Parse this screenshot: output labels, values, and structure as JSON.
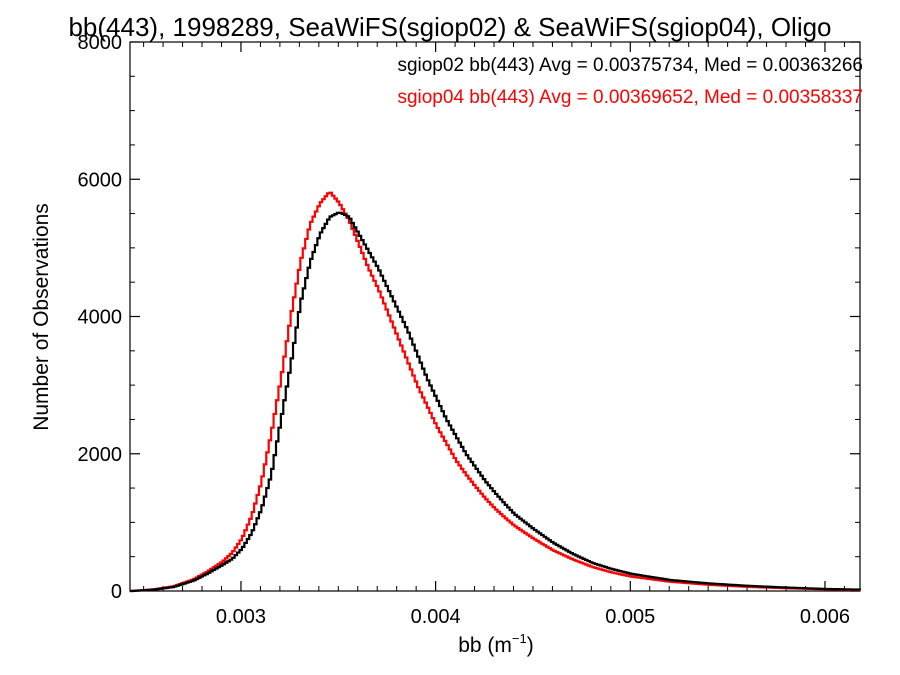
{
  "chart_data": {
    "type": "line",
    "step": true,
    "title": "bb(443), 1998289, SeaWiFS(sgiop02) & SeaWiFS(sgiop04), Oligo",
    "xlabel_main": "bb (m",
    "xlabel_sup": "−1",
    "xlabel_end": ")",
    "ylabel": "Number of Observations",
    "xlim": [
      0.00243,
      0.00618
    ],
    "ylim": [
      0,
      8000
    ],
    "xticks": [
      0.003,
      0.004,
      0.005,
      0.006
    ],
    "xtick_labels": [
      "0.003",
      "0.004",
      "0.005",
      "0.006"
    ],
    "yticks": [
      0,
      2000,
      4000,
      6000,
      8000
    ],
    "ytick_labels": [
      "0",
      "2000",
      "4000",
      "6000",
      "8000"
    ],
    "grid": false,
    "legend_position": "top-right",
    "series": [
      {
        "name": "sgiop02 bb(443) Avg = 0.00375734, Med = 0.00363266",
        "color": "#000000",
        "points": [
          [
            0.00243,
            0
          ],
          [
            0.00255,
            20
          ],
          [
            0.00265,
            60
          ],
          [
            0.00275,
            150
          ],
          [
            0.00282,
            250
          ],
          [
            0.0029,
            380
          ],
          [
            0.00295,
            470
          ],
          [
            0.003,
            620
          ],
          [
            0.00305,
            850
          ],
          [
            0.0031,
            1200
          ],
          [
            0.00315,
            1700
          ],
          [
            0.0032,
            2500
          ],
          [
            0.00325,
            3300
          ],
          [
            0.0033,
            4200
          ],
          [
            0.00335,
            4800
          ],
          [
            0.0034,
            5200
          ],
          [
            0.00345,
            5450
          ],
          [
            0.0035,
            5520
          ],
          [
            0.00355,
            5450
          ],
          [
            0.0036,
            5200
          ],
          [
            0.00365,
            4950
          ],
          [
            0.0037,
            4700
          ],
          [
            0.00375,
            4400
          ],
          [
            0.0038,
            4100
          ],
          [
            0.00385,
            3800
          ],
          [
            0.0039,
            3450
          ],
          [
            0.00395,
            3100
          ],
          [
            0.004,
            2800
          ],
          [
            0.00405,
            2500
          ],
          [
            0.0041,
            2250
          ],
          [
            0.00415,
            2000
          ],
          [
            0.0042,
            1800
          ],
          [
            0.00425,
            1600
          ],
          [
            0.0043,
            1430
          ],
          [
            0.00435,
            1270
          ],
          [
            0.0044,
            1120
          ],
          [
            0.0045,
            900
          ],
          [
            0.0046,
            700
          ],
          [
            0.0047,
            540
          ],
          [
            0.0048,
            410
          ],
          [
            0.0049,
            320
          ],
          [
            0.005,
            250
          ],
          [
            0.0052,
            160
          ],
          [
            0.0054,
            110
          ],
          [
            0.0056,
            75
          ],
          [
            0.0058,
            50
          ],
          [
            0.006,
            30
          ],
          [
            0.00618,
            20
          ]
        ]
      },
      {
        "name": "sgiop04 bb(443) Avg = 0.00369652, Med = 0.00358337",
        "color": "#ff0000",
        "points": [
          [
            0.00243,
            0
          ],
          [
            0.00255,
            25
          ],
          [
            0.00265,
            70
          ],
          [
            0.00275,
            170
          ],
          [
            0.00282,
            280
          ],
          [
            0.0029,
            430
          ],
          [
            0.00295,
            560
          ],
          [
            0.003,
            770
          ],
          [
            0.00305,
            1100
          ],
          [
            0.0031,
            1600
          ],
          [
            0.00315,
            2300
          ],
          [
            0.0032,
            3100
          ],
          [
            0.00325,
            4000
          ],
          [
            0.0033,
            4800
          ],
          [
            0.00335,
            5350
          ],
          [
            0.0034,
            5650
          ],
          [
            0.00345,
            5820
          ],
          [
            0.0035,
            5650
          ],
          [
            0.00355,
            5400
          ],
          [
            0.0036,
            5050
          ],
          [
            0.00365,
            4700
          ],
          [
            0.0037,
            4400
          ],
          [
            0.00375,
            4050
          ],
          [
            0.0038,
            3700
          ],
          [
            0.00385,
            3350
          ],
          [
            0.0039,
            3000
          ],
          [
            0.00395,
            2700
          ],
          [
            0.004,
            2400
          ],
          [
            0.00405,
            2150
          ],
          [
            0.0041,
            1900
          ],
          [
            0.00415,
            1700
          ],
          [
            0.0042,
            1520
          ],
          [
            0.00425,
            1350
          ],
          [
            0.0043,
            1200
          ],
          [
            0.00435,
            1070
          ],
          [
            0.0044,
            950
          ],
          [
            0.0045,
            760
          ],
          [
            0.0046,
            590
          ],
          [
            0.0047,
            460
          ],
          [
            0.0048,
            350
          ],
          [
            0.0049,
            270
          ],
          [
            0.005,
            210
          ],
          [
            0.0052,
            135
          ],
          [
            0.0054,
            90
          ],
          [
            0.0056,
            60
          ],
          [
            0.0058,
            40
          ],
          [
            0.006,
            25
          ],
          [
            0.00618,
            15
          ]
        ]
      }
    ]
  }
}
